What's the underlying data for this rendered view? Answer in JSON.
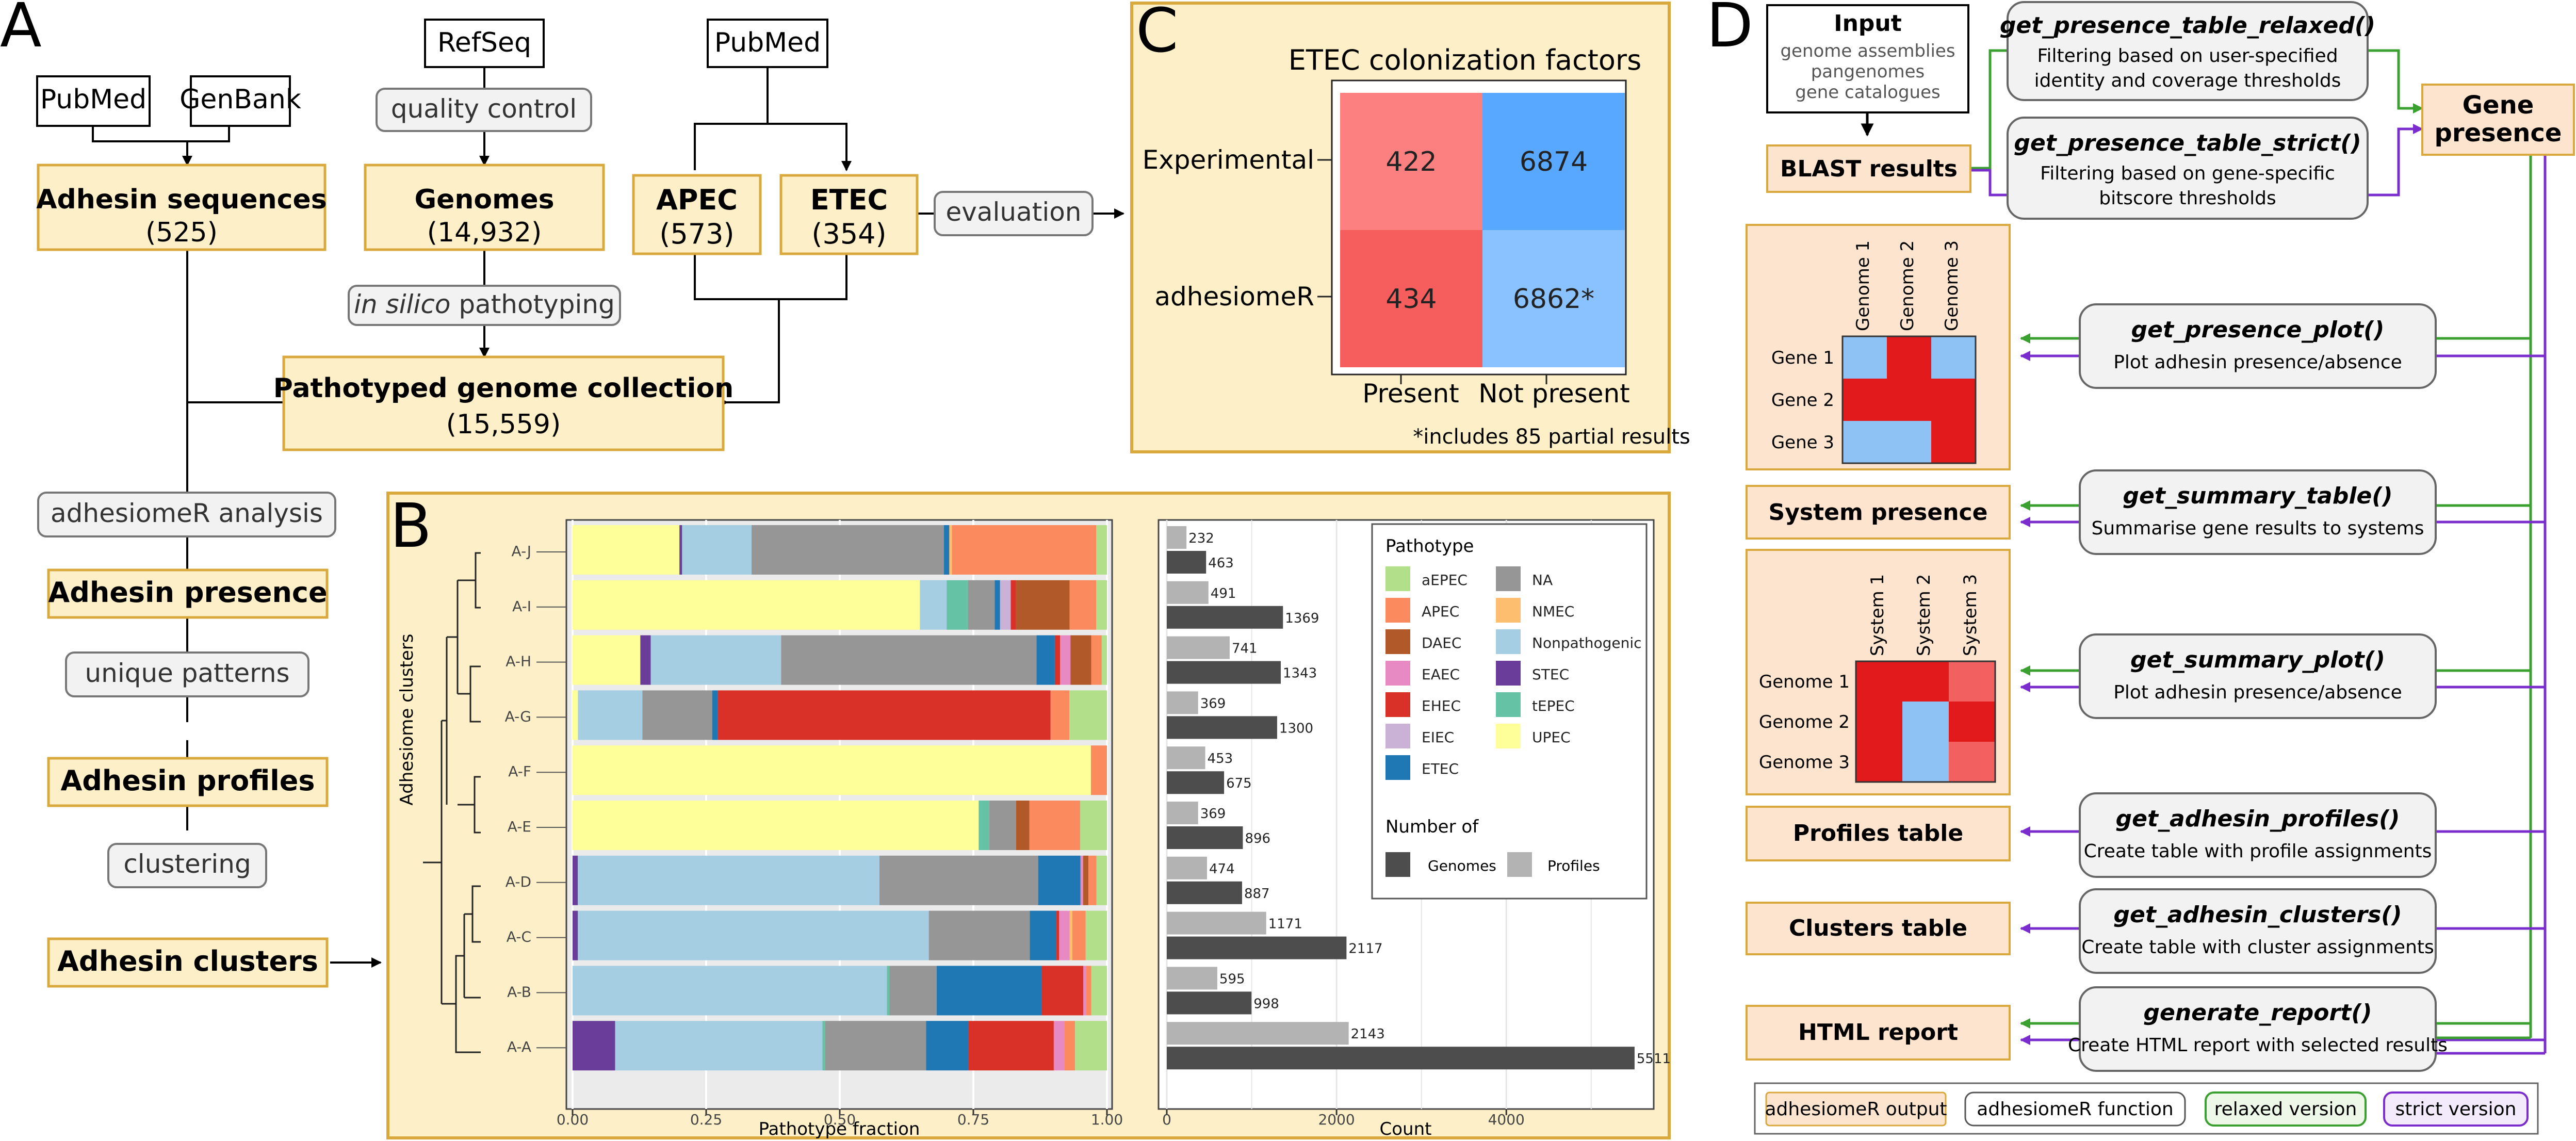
{
  "panels": {
    "A": "A",
    "B": "B",
    "C": "C",
    "D": "D"
  },
  "panelA": {
    "pubmed1": "PubMed",
    "genbank": "GenBank",
    "refseq": "RefSeq",
    "pubmed2": "PubMed",
    "quality_control": "quality control",
    "adhesin_sequences": {
      "title": "Adhesin sequences",
      "count": "(525)"
    },
    "genomes": {
      "title": "Genomes",
      "count": "(14,932)"
    },
    "apec": {
      "title": "APEC",
      "count": "(573)"
    },
    "etec": {
      "title": "ETEC",
      "count": "(354)"
    },
    "evaluation": "evaluation",
    "pathotyping": {
      "italic": "in silico",
      "rest": " pathotyping"
    },
    "collection": {
      "title": "Pathotyped genome collection",
      "count": "(15,559)"
    },
    "analysis": "adhesiomeR analysis",
    "adhesin_presence": "Adhesin presence",
    "unique_patterns": "unique patterns",
    "adhesin_profiles": "Adhesin profiles",
    "clustering": "clustering",
    "adhesin_clusters": "Adhesin clusters"
  },
  "panelB": {
    "ylabel": "Adhesiome clusters",
    "xlabel_fraction": "Pathotype fraction",
    "xlabel_count": "Count",
    "legend_pathotype_title": "Pathotype",
    "legend_number_title": "Number of",
    "legend_genomes": "Genomes",
    "legend_profiles": "Profiles"
  },
  "pathotypes": [
    {
      "name": "aEPEC",
      "color": "#b2df8a"
    },
    {
      "name": "APEC",
      "color": "#fb8a5e"
    },
    {
      "name": "DAEC",
      "color": "#b15928"
    },
    {
      "name": "EAEC",
      "color": "#e78ac3"
    },
    {
      "name": "EHEC",
      "color": "#d93027"
    },
    {
      "name": "EIEC",
      "color": "#cab2d6"
    },
    {
      "name": "ETEC",
      "color": "#1f78b4"
    },
    {
      "name": "NA",
      "color": "#969696"
    },
    {
      "name": "NMEC",
      "color": "#fdbf6f"
    },
    {
      "name": "Nonpathogenic",
      "color": "#a6cee3"
    },
    {
      "name": "STEC",
      "color": "#6a3d9a"
    },
    {
      "name": "tEPEC",
      "color": "#66c2a5"
    },
    {
      "name": "UPEC",
      "color": "#ffff99"
    }
  ],
  "chart_data": [
    {
      "type": "bar",
      "orientation": "horizontal",
      "stacked": true,
      "xlabel": "Pathotype fraction",
      "ylabel": "Adhesiome clusters",
      "xlim": [
        0,
        1
      ],
      "xticks": [
        "0.00",
        "0.25",
        "0.50",
        "0.75",
        "1.00"
      ],
      "categories": [
        "A-J",
        "A-I",
        "A-H",
        "A-G",
        "A-F",
        "A-E",
        "A-D",
        "A-C",
        "A-B",
        "A-A"
      ],
      "series": [
        {
          "name": "UPEC",
          "values": [
            0.2,
            0.65,
            0.13,
            0.01,
            0.97,
            0.76,
            0.0,
            0.0,
            0.0,
            0.0
          ]
        },
        {
          "name": "STEC",
          "values": [
            0.005,
            0.0,
            0.02,
            0.0,
            0.0,
            0.0,
            0.01,
            0.01,
            0.0,
            0.08
          ]
        },
        {
          "name": "Nonpathogenic",
          "values": [
            0.13,
            0.05,
            0.25,
            0.12,
            0.0,
            0.0,
            0.57,
            0.66,
            0.6,
            0.39
          ]
        },
        {
          "name": "tEPEC",
          "values": [
            0.0,
            0.04,
            0.0,
            0.0,
            0.0,
            0.02,
            0.0,
            0.0,
            0.005,
            0.005
          ]
        },
        {
          "name": "NA",
          "values": [
            0.36,
            0.05,
            0.49,
            0.13,
            0.0,
            0.05,
            0.3,
            0.19,
            0.09,
            0.19
          ]
        },
        {
          "name": "ETEC",
          "values": [
            0.01,
            0.01,
            0.035,
            0.01,
            0.0,
            0.0,
            0.08,
            0.05,
            0.2,
            0.08
          ]
        },
        {
          "name": "EIEC",
          "values": [
            0.0,
            0.02,
            0.0,
            0.0,
            0.0,
            0.0,
            0.0,
            0.0,
            0.0,
            0.0
          ]
        },
        {
          "name": "EHEC",
          "values": [
            0.0,
            0.01,
            0.01,
            0.62,
            0.0,
            0.0,
            0.0,
            0.005,
            0.08,
            0.16
          ]
        },
        {
          "name": "EAEC",
          "values": [
            0.0,
            0.0,
            0.02,
            0.0,
            0.0,
            0.0,
            0.005,
            0.02,
            0.005,
            0.02
          ]
        },
        {
          "name": "DAEC",
          "values": [
            0.0,
            0.1,
            0.04,
            0.0,
            0.0,
            0.025,
            0.01,
            0.0,
            0.0,
            0.0
          ]
        },
        {
          "name": "NMEC",
          "values": [
            0.005,
            0.0,
            0.0,
            0.0,
            0.0,
            0.0,
            0.0,
            0.005,
            0.0,
            0.0
          ]
        },
        {
          "name": "APEC",
          "values": [
            0.27,
            0.05,
            0.02,
            0.035,
            0.03,
            0.095,
            0.015,
            0.025,
            0.01,
            0.02
          ]
        },
        {
          "name": "aEPEC",
          "values": [
            0.02,
            0.02,
            0.01,
            0.07,
            0.0,
            0.05,
            0.02,
            0.04,
            0.03,
            0.06
          ]
        }
      ]
    },
    {
      "type": "bar",
      "orientation": "horizontal",
      "xlabel": "Count",
      "xlim": [
        0,
        5700
      ],
      "xticks": [
        0,
        2000,
        4000
      ],
      "categories": [
        "A-J",
        "A-I",
        "A-H",
        "A-G",
        "A-F",
        "A-E",
        "A-D",
        "A-C",
        "A-B",
        "A-A"
      ],
      "series": [
        {
          "name": "Profiles",
          "values": [
            232,
            491,
            741,
            369,
            453,
            369,
            474,
            1171,
            595,
            2143
          ]
        },
        {
          "name": "Genomes",
          "values": [
            463,
            1369,
            1343,
            1300,
            675,
            896,
            887,
            2117,
            998,
            5511
          ]
        }
      ]
    },
    {
      "type": "heatmap",
      "title": "ETEC colonization factors",
      "rows": [
        "Experimental",
        "adhesiomeR"
      ],
      "columns": [
        "Present",
        "Not present"
      ],
      "values": [
        [
          "422",
          "6874"
        ],
        [
          "434",
          "6862*"
        ]
      ],
      "colors": [
        [
          "#fd8080",
          "#59a8ff"
        ],
        [
          "#f65d5d",
          "#89c2ff"
        ]
      ],
      "note": "*includes 85 partial results"
    }
  ],
  "panelD": {
    "input": {
      "title": "Input",
      "lines": [
        "genome assemblies",
        "pangenomes",
        "gene catalogues"
      ]
    },
    "blast": "BLAST results",
    "relaxed": {
      "fn": "get_presence_table_relaxed()",
      "desc1": "Filtering based on user-specified",
      "desc2": "identity and coverage thresholds"
    },
    "strict": {
      "fn": "get_presence_table_strict()",
      "desc1": "Filtering based on gene-specific",
      "desc2": "bitscore thresholds"
    },
    "gene_presence": {
      "l1": "Gene",
      "l2": "presence"
    },
    "presence_plot": {
      "fn": "get_presence_plot()",
      "desc": "Plot adhesin presence/absence"
    },
    "summary_table": {
      "fn": "get_summary_table()",
      "desc": "Summarise gene results to systems"
    },
    "system_presence": "System presence",
    "summary_plot": {
      "fn": "get_summary_plot()",
      "desc": "Plot adhesin presence/absence"
    },
    "profiles_fn": {
      "fn": "get_adhesin_profiles()",
      "desc": "Create table with profile assignments"
    },
    "profiles_table": "Profiles table",
    "clusters_fn": {
      "fn": "get_adhesin_clusters()",
      "desc": "Create table with cluster assignments"
    },
    "clusters_table": "Clusters table",
    "report_fn": {
      "fn": "generate_report()",
      "desc": "Create HTML report with selected results"
    },
    "html_report": "HTML report",
    "heat1": {
      "cols": [
        "Genome 1",
        "Genome 2",
        "Genome 3"
      ],
      "rows": [
        "Gene 1",
        "Gene 2",
        "Gene 3"
      ],
      "cells": [
        [
          "#8ec2f5",
          "#e31a1c",
          "#8ec2f5"
        ],
        [
          "#e31a1c",
          "#e31a1c",
          "#e31a1c"
        ],
        [
          "#8ec2f5",
          "#8ec2f5",
          "#e31a1c"
        ]
      ]
    },
    "heat2": {
      "cols": [
        "System 1",
        "System 2",
        "System 3"
      ],
      "rows": [
        "Genome 1",
        "Genome 2",
        "Genome 3"
      ],
      "cells": [
        [
          "#e31a1c",
          "#e31a1c",
          "#f26060"
        ],
        [
          "#e31a1c",
          "#8ec2f5",
          "#e31a1c"
        ],
        [
          "#e31a1c",
          "#8ec2f5",
          "#f26060"
        ]
      ]
    },
    "legend": {
      "output": "adhesiomeR output",
      "function": "adhesiomeR function",
      "relaxed": "relaxed version",
      "strict": "strict version"
    }
  },
  "colors": {
    "yellow_fill": "#fdf0c8",
    "yellow_border": "#d9a93e",
    "peach_fill": "#fce4cf",
    "green": "#3aa030",
    "purple": "#7a2ccc",
    "gray_fill": "#f2f2f2"
  }
}
